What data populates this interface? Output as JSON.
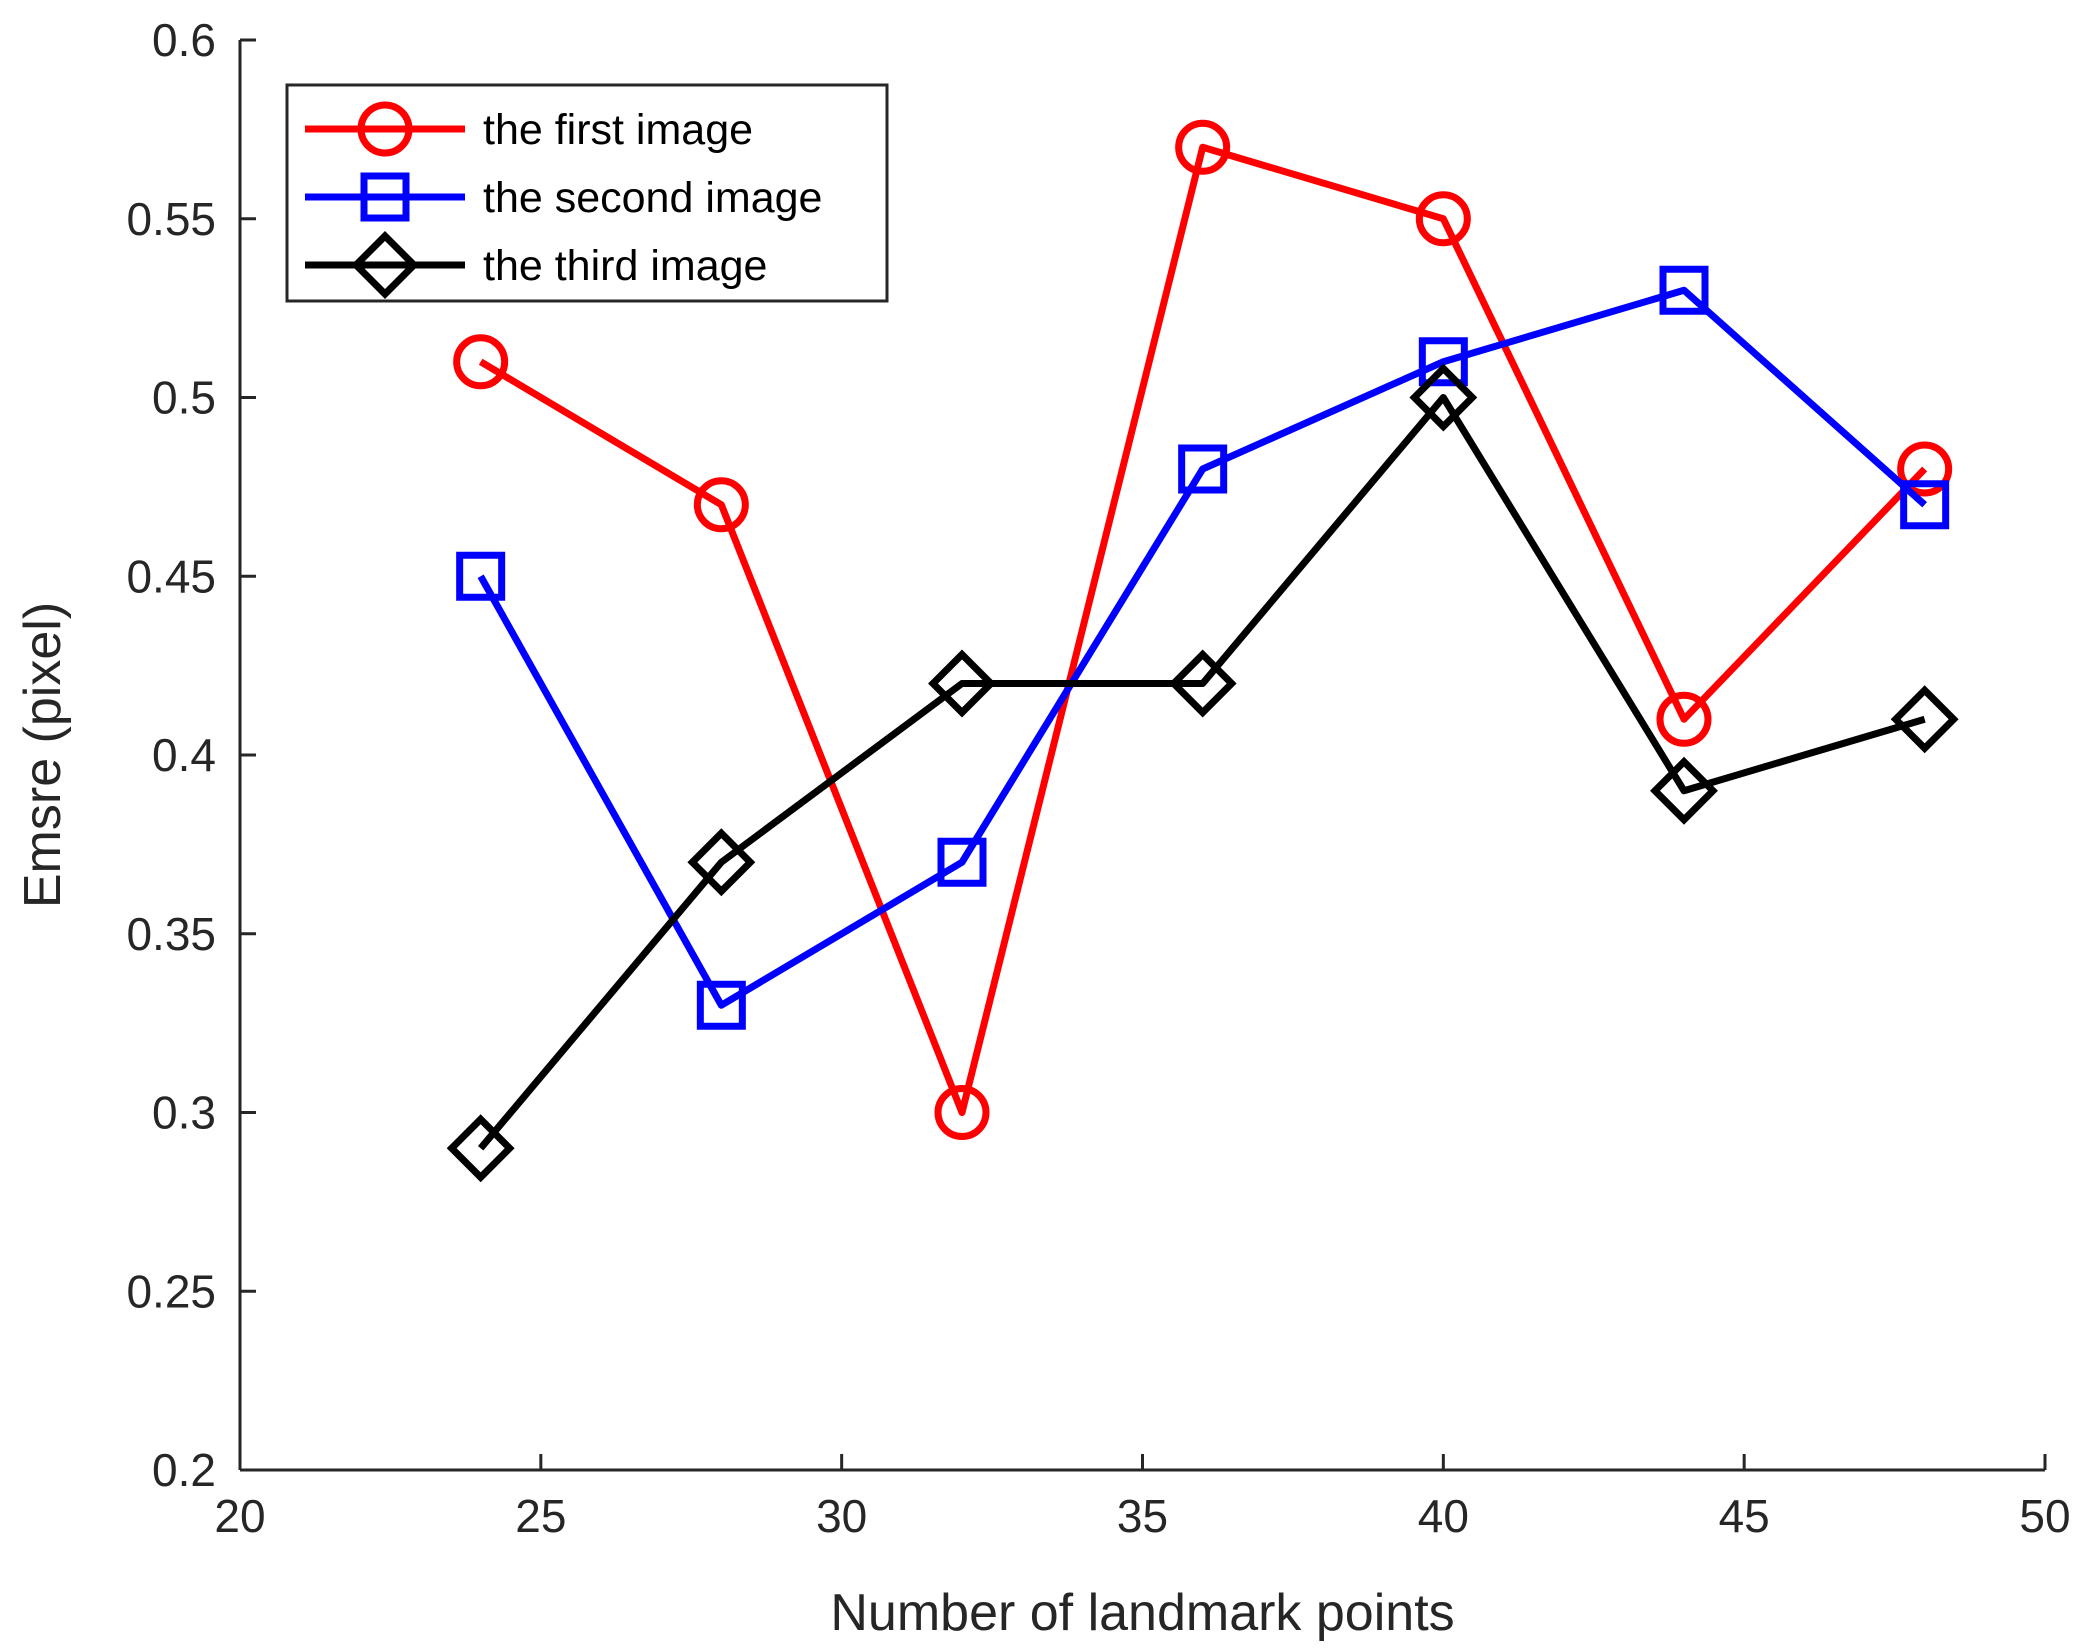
{
  "chart_data": {
    "type": "line",
    "title": "",
    "xlabel": "Number of landmark points",
    "ylabel": "Emsre (pixel)",
    "xlim": [
      20,
      50
    ],
    "ylim": [
      0.2,
      0.6
    ],
    "xticks": [
      20,
      25,
      30,
      35,
      40,
      45,
      50
    ],
    "xtick_labels": [
      "20",
      "25",
      "30",
      "35",
      "40",
      "45",
      "50"
    ],
    "yticks": [
      0.2,
      0.25,
      0.3,
      0.35,
      0.4,
      0.45,
      0.5,
      0.55,
      0.6
    ],
    "ytick_labels": [
      "0.2",
      "0.25",
      "0.3",
      "0.35",
      "0.4",
      "0.45",
      "0.5",
      "0.55",
      "0.6"
    ],
    "grid": false,
    "legend_position": "top-left",
    "x": [
      24,
      28,
      32,
      36,
      40,
      44,
      48
    ],
    "series": [
      {
        "name": "the first image",
        "color": "#ff0000",
        "marker": "circle",
        "values": [
          0.51,
          0.47,
          0.3,
          0.57,
          0.55,
          0.41,
          0.48
        ]
      },
      {
        "name": "the second image",
        "color": "#0000ff",
        "marker": "square",
        "values": [
          0.45,
          0.33,
          0.37,
          0.48,
          0.51,
          0.53,
          0.47
        ]
      },
      {
        "name": "the third image",
        "color": "#000000",
        "marker": "diamond",
        "values": [
          0.29,
          0.37,
          0.42,
          0.42,
          0.5,
          0.39,
          0.41
        ]
      }
    ]
  }
}
